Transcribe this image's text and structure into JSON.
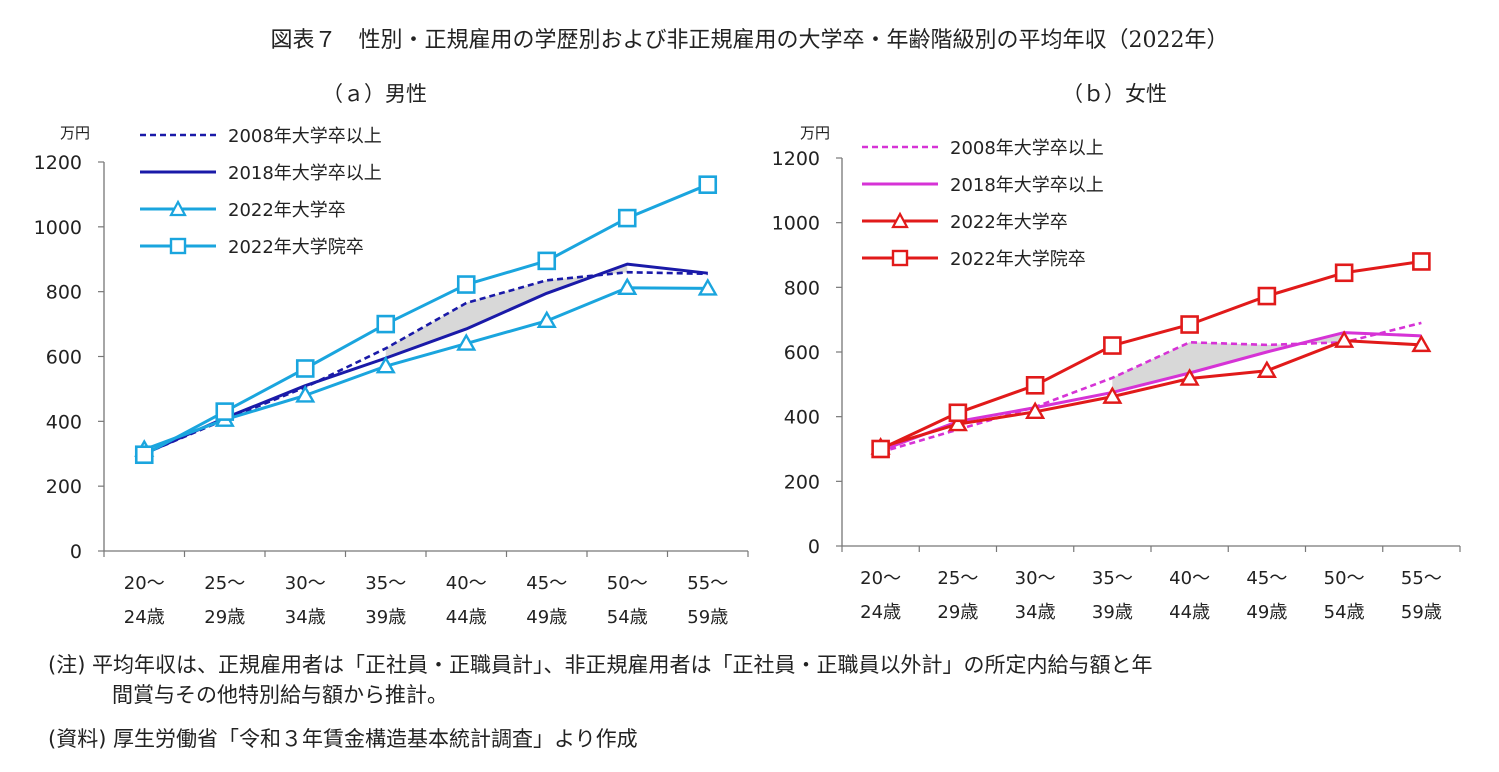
{
  "title": "図表７　性別・正規雇用の学歴別および非正規雇用の大学卒・年齢階級別の平均年収（2022年）",
  "notes": [
    "(注) 平均年収は、正規雇用者は「正社員・正職員計」、非正規雇用者は「正社員・正職員以外計」の所定内給与額と年",
    "間賞与その他特別給与額から推計。",
    "(資料) 厚生労働省「令和３年賃金構造基本統計調査」より作成"
  ],
  "chart_data": [
    {
      "panel": "（ａ）男性",
      "type": "line",
      "unit": "万円",
      "ylim": [
        0,
        1200
      ],
      "yticks": [
        0,
        200,
        400,
        600,
        800,
        1000,
        1200
      ],
      "categories": [
        "20～\n24歳",
        "25～\n29歳",
        "30～\n34歳",
        "35～\n39歳",
        "40～\n44歳",
        "45～\n49歳",
        "50～\n54歳",
        "55～\n59歳"
      ],
      "series": [
        {
          "name": "2008年大学卒以上",
          "style": "dashed",
          "marker": "none",
          "color": "#1a1aa8",
          "values": [
            300,
            405,
            505,
            625,
            765,
            835,
            860,
            855
          ]
        },
        {
          "name": "2018年大学卒以上",
          "style": "solid",
          "marker": "none",
          "color": "#1a1aa8",
          "values": [
            300,
            410,
            510,
            595,
            685,
            795,
            885,
            857
          ]
        },
        {
          "name": "2022年大学卒",
          "style": "solid",
          "marker": "triangle",
          "color": "#1aa5de",
          "values": [
            313,
            405,
            480,
            570,
            640,
            710,
            812,
            810
          ]
        },
        {
          "name": "2022年大学院卒",
          "style": "solid",
          "marker": "square",
          "color": "#1aa5de",
          "values": [
            297,
            430,
            563,
            700,
            822,
            895,
            1027,
            1130
          ]
        }
      ],
      "shaded_between": [
        "2008年大学卒以上",
        "2018年大学卒以上"
      ]
    },
    {
      "panel": "（ｂ）女性",
      "type": "line",
      "unit": "万円",
      "ylim": [
        0,
        1200
      ],
      "yticks": [
        0,
        200,
        400,
        600,
        800,
        1000,
        1200
      ],
      "categories": [
        "20～\n24歳",
        "25～\n29歳",
        "30～\n34歳",
        "35～\n39歳",
        "40～\n44歳",
        "45～\n49歳",
        "50～\n54歳",
        "55～\n59歳"
      ],
      "series": [
        {
          "name": "2008年大学卒以上",
          "style": "dashed",
          "marker": "none",
          "color": "#d633d6",
          "values": [
            290,
            360,
            430,
            520,
            630,
            622,
            630,
            690
          ]
        },
        {
          "name": "2018年大学卒以上",
          "style": "solid",
          "marker": "none",
          "color": "#d633d6",
          "values": [
            295,
            385,
            428,
            475,
            535,
            600,
            660,
            650
          ]
        },
        {
          "name": "2022年大学卒",
          "style": "solid",
          "marker": "triangle",
          "color": "#e11a1a",
          "values": [
            305,
            377,
            415,
            462,
            518,
            542,
            635,
            622
          ]
        },
        {
          "name": "2022年大学院卒",
          "style": "solid",
          "marker": "square",
          "color": "#e11a1a",
          "values": [
            300,
            412,
            497,
            620,
            685,
            773,
            845,
            880
          ]
        }
      ],
      "shaded_between": [
        "2008年大学卒以上",
        "2018年大学卒以上"
      ]
    }
  ]
}
